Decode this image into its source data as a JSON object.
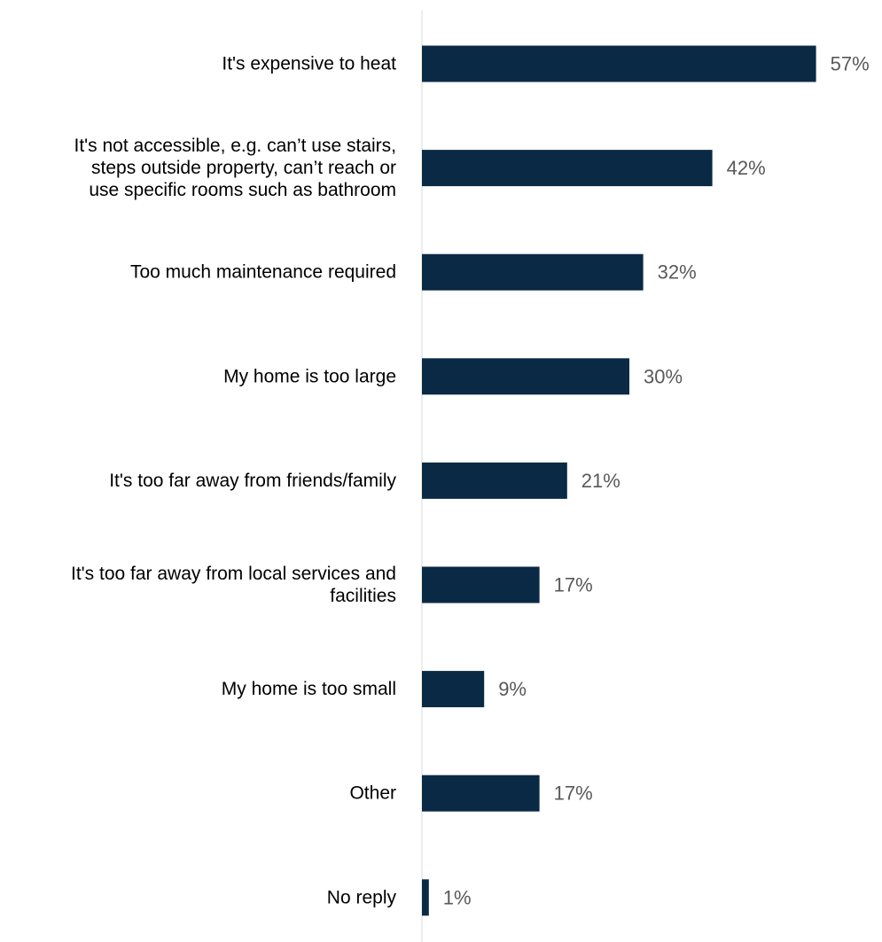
{
  "chart_data": {
    "type": "bar",
    "orientation": "horizontal",
    "categories": [
      [
        "It's expensive to heat"
      ],
      [
        "It's not accessible, e.g. can’t use stairs,",
        "steps outside property, can’t reach or",
        "use specific rooms such as bathroom"
      ],
      [
        "Too much maintenance required"
      ],
      [
        "My home is too large"
      ],
      [
        "It's too far away from friends/family"
      ],
      [
        "It's too far away from local services and",
        "facilities"
      ],
      [
        "My home is too small"
      ],
      [
        "Other"
      ],
      [
        "No reply"
      ]
    ],
    "values": [
      57,
      42,
      32,
      30,
      21,
      17,
      9,
      17,
      1
    ],
    "value_labels": [
      "57%",
      "42%",
      "32%",
      "30%",
      "21%",
      "17%",
      "9%",
      "17%",
      "1%"
    ],
    "unit": "%",
    "xlim": [
      0,
      60
    ],
    "grid": false,
    "legend": "none",
    "bar_color": "#0a2944",
    "axis_color": "#d9d9d9",
    "value_label_color": "#595959",
    "category_label_color": "#000000"
  }
}
